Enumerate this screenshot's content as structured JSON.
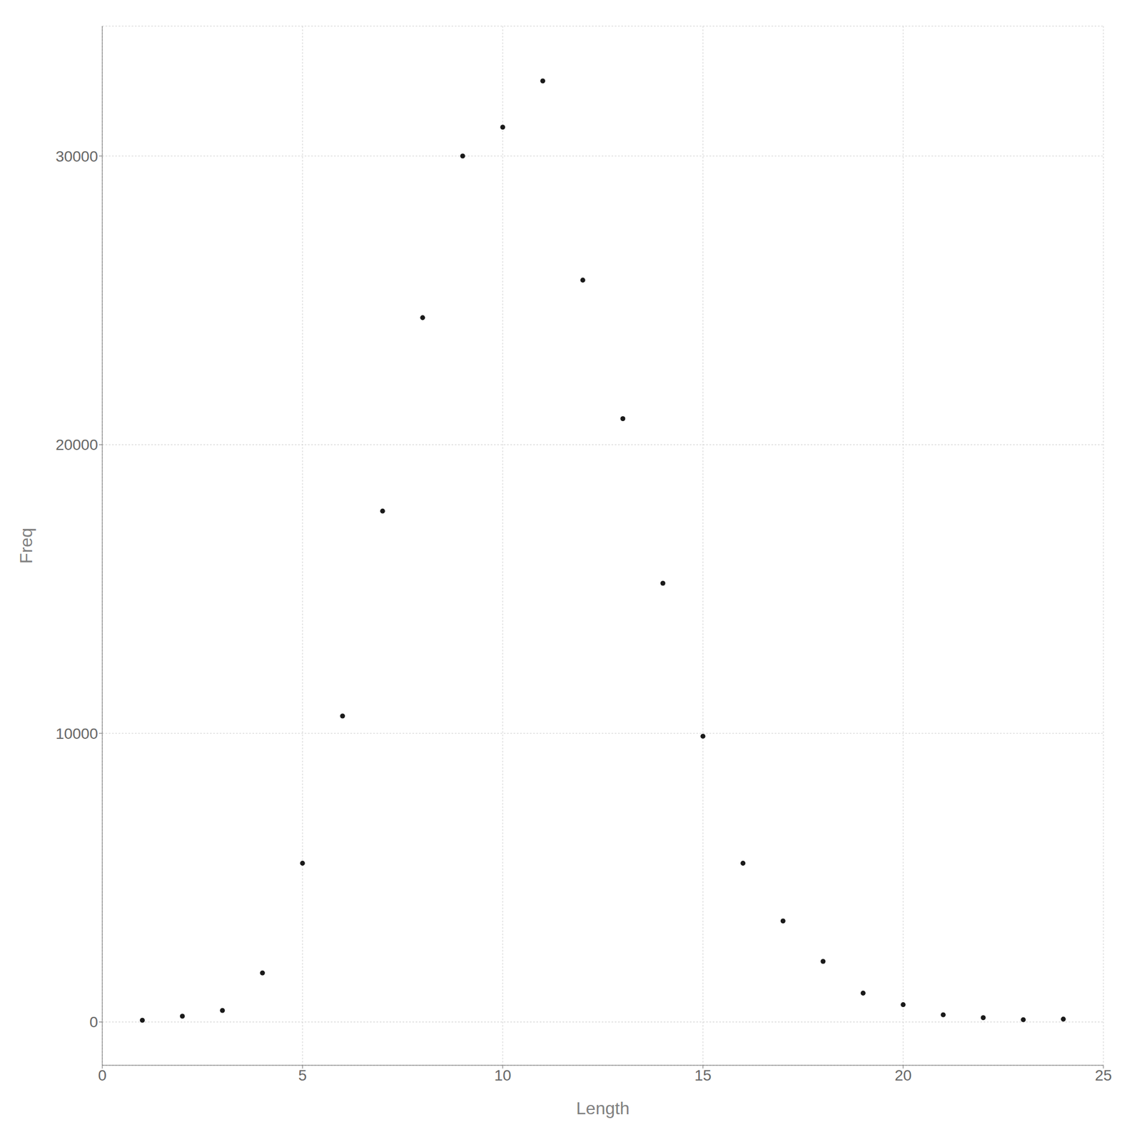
{
  "chart_data": {
    "type": "scatter",
    "x": [
      1,
      2,
      3,
      4,
      5,
      6,
      7,
      8,
      9,
      10,
      11,
      12,
      13,
      14,
      15,
      16,
      17,
      18,
      19,
      20,
      21,
      22,
      23,
      24
    ],
    "values": [
      60,
      200,
      400,
      1700,
      5500,
      10600,
      17700,
      24400,
      30000,
      31000,
      32600,
      25700,
      20900,
      15200,
      9900,
      5500,
      3500,
      2100,
      1000,
      600,
      250,
      150,
      80,
      100
    ],
    "xlabel": "Length",
    "ylabel": "Freq",
    "xlim": [
      0,
      25
    ],
    "ylim": [
      -1500,
      34500
    ],
    "xticks": [
      0,
      5,
      10,
      15,
      20,
      25
    ],
    "yticks": [
      0,
      10000,
      20000,
      30000
    ],
    "grid": true,
    "color": "#1a1a1a"
  }
}
